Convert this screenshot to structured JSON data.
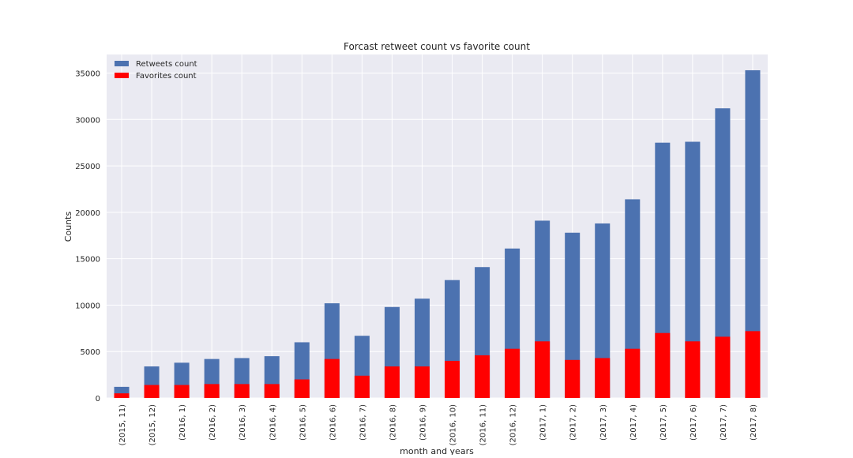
{
  "chart_data": {
    "type": "bar",
    "title": "Forcast retweet count vs favorite count",
    "xlabel": "month and years",
    "ylabel": "Counts",
    "categories": [
      "(2015, 11)",
      "(2015, 12)",
      "(2016, 1)",
      "(2016, 2)",
      "(2016, 3)",
      "(2016, 4)",
      "(2016, 5)",
      "(2016, 6)",
      "(2016, 7)",
      "(2016, 8)",
      "(2016, 9)",
      "(2016, 10)",
      "(2016, 11)",
      "(2016, 12)",
      "(2017, 1)",
      "(2017, 2)",
      "(2017, 3)",
      "(2017, 4)",
      "(2017, 5)",
      "(2017, 6)",
      "(2017, 7)",
      "(2017, 8)"
    ],
    "series": [
      {
        "name": "Retweets count",
        "color": "#4c72b0",
        "values": [
          1200,
          3400,
          3800,
          4200,
          4300,
          4500,
          6000,
          10200,
          6700,
          9800,
          10700,
          12700,
          14100,
          16100,
          19100,
          17800,
          18800,
          21400,
          27500,
          27600,
          31200,
          35300
        ]
      },
      {
        "name": "Favorites count",
        "color": "#ff0000",
        "values": [
          500,
          1400,
          1400,
          1500,
          1500,
          1500,
          2000,
          4200,
          2400,
          3400,
          3400,
          4000,
          4600,
          5300,
          6100,
          4100,
          4300,
          5300,
          7000,
          6100,
          6600,
          7200
        ]
      }
    ],
    "stacked": false,
    "ylim": [
      0,
      37000
    ],
    "yticks": [
      0,
      5000,
      10000,
      15000,
      20000,
      25000,
      30000,
      35000
    ],
    "grid": true,
    "legend": "upper left",
    "background": "#eaeaf2"
  }
}
